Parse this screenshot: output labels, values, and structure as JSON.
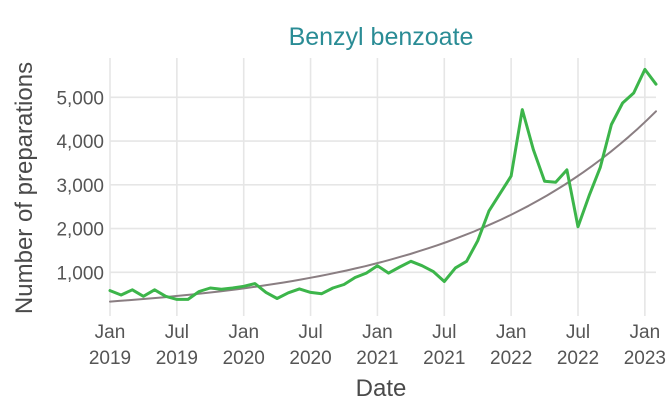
{
  "chart_data": {
    "type": "line",
    "title": "Benzyl benzoate",
    "xlabel": "Date",
    "ylabel": "Number of preparations",
    "x_ticks": [
      {
        "date": "2019-01",
        "line1": "Jan",
        "line2": "2019"
      },
      {
        "date": "2019-07",
        "line1": "Jul",
        "line2": "2019"
      },
      {
        "date": "2020-01",
        "line1": "Jan",
        "line2": "2020"
      },
      {
        "date": "2020-07",
        "line1": "Jul",
        "line2": "2020"
      },
      {
        "date": "2021-01",
        "line1": "Jan",
        "line2": "2021"
      },
      {
        "date": "2021-07",
        "line1": "Jul",
        "line2": "2021"
      },
      {
        "date": "2022-01",
        "line1": "Jan",
        "line2": "2022"
      },
      {
        "date": "2022-07",
        "line1": "Jul",
        "line2": "2022"
      },
      {
        "date": "2023-01",
        "line1": "Jan",
        "line2": "2023"
      }
    ],
    "y_ticks": [
      {
        "value": 1000,
        "label": "1,000"
      },
      {
        "value": 2000,
        "label": "2,000"
      },
      {
        "value": 3000,
        "label": "3,000"
      },
      {
        "value": 4000,
        "label": "4,000"
      },
      {
        "value": 5000,
        "label": "5,000"
      }
    ],
    "xlim": [
      "2019-01",
      "2023-02"
    ],
    "ylim": [
      0,
      5900
    ],
    "grid": true,
    "series": [
      {
        "color": "#3cb54a",
        "x": [
          "2019-01",
          "2019-02",
          "2019-03",
          "2019-04",
          "2019-05",
          "2019-06",
          "2019-07",
          "2019-08",
          "2019-09",
          "2019-10",
          "2019-11",
          "2019-12",
          "2020-01",
          "2020-02",
          "2020-03",
          "2020-04",
          "2020-05",
          "2020-06",
          "2020-07",
          "2020-08",
          "2020-09",
          "2020-10",
          "2020-11",
          "2020-12",
          "2021-01",
          "2021-02",
          "2021-03",
          "2021-04",
          "2021-05",
          "2021-06",
          "2021-07",
          "2021-08",
          "2021-09",
          "2021-10",
          "2021-11",
          "2021-12",
          "2022-01",
          "2022-02",
          "2022-03",
          "2022-04",
          "2022-05",
          "2022-06",
          "2022-07",
          "2022-08",
          "2022-09",
          "2022-10",
          "2022-11",
          "2022-12",
          "2023-01",
          "2023-02"
        ],
        "y": [
          580,
          480,
          600,
          450,
          600,
          450,
          380,
          380,
          560,
          640,
          610,
          640,
          680,
          740,
          540,
          400,
          530,
          620,
          540,
          510,
          640,
          720,
          880,
          980,
          1150,
          980,
          1120,
          1250,
          1150,
          1020,
          790,
          1100,
          1250,
          1720,
          2400,
          2800,
          3200,
          4720,
          3800,
          3080,
          3060,
          3340,
          2040,
          2750,
          3400,
          4380,
          4870,
          5100,
          5640,
          5300
        ]
      },
      {
        "color": "#8a7e82",
        "x": [
          "2019-01",
          "2023-02"
        ],
        "y": [
          330,
          4680
        ],
        "trend": "exponential"
      }
    ]
  }
}
